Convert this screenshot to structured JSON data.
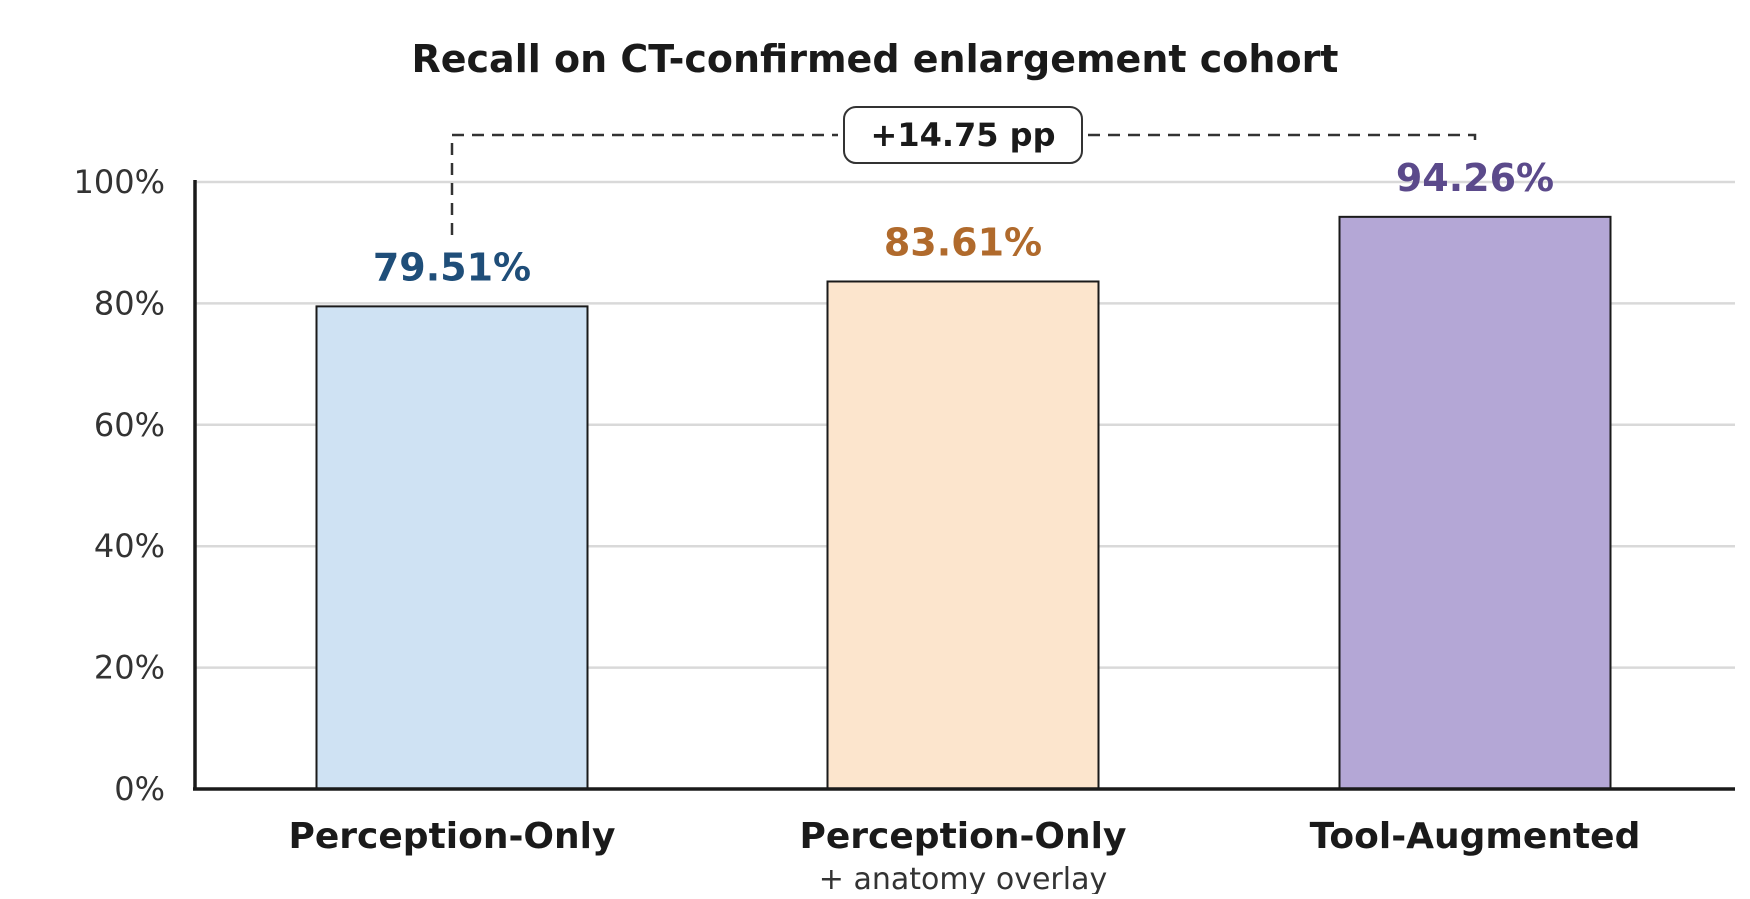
{
  "chart_data": {
    "type": "bar",
    "title": "Recall on CT-confirmed enlargement cohort",
    "xlabel": "",
    "ylabel": "",
    "ylim": [
      0,
      100
    ],
    "yticks": [
      "0%",
      "20%",
      "40%",
      "60%",
      "80%",
      "100%"
    ],
    "ytick_values": [
      0,
      20,
      40,
      60,
      80,
      100
    ],
    "categories": [
      "Perception-Only",
      "Perception-Only",
      "Tool-Augmented"
    ],
    "category_sublabels": [
      "",
      "+ anatomy overlay",
      ""
    ],
    "values": [
      79.51,
      83.61,
      94.26
    ],
    "value_labels": [
      "79.51%",
      "83.61%",
      "94.26%"
    ],
    "bar_colors": [
      "#cfe2f3",
      "#fce5cd",
      "#b4a7d6"
    ],
    "label_colors": [
      "#1f4e79",
      "#b06a2c",
      "#5b4a8b"
    ],
    "grid": true,
    "legend": "none",
    "annotation": {
      "text": "+14.75 pp",
      "from_category": 0,
      "to_category": 2
    }
  }
}
